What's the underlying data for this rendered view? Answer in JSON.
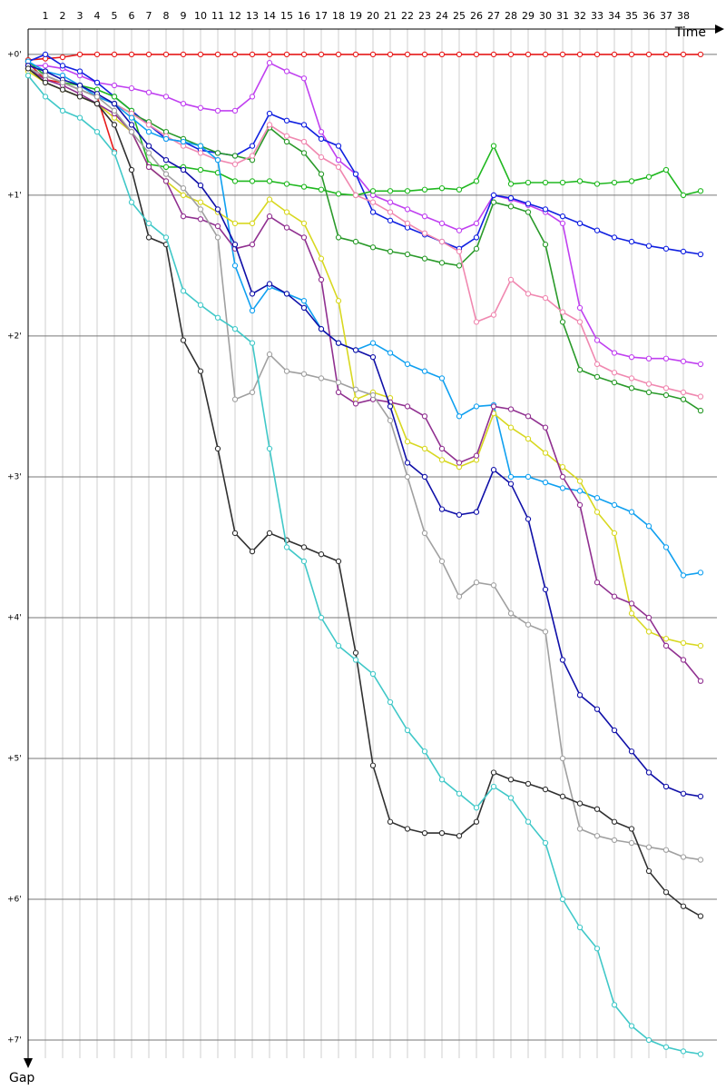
{
  "chart_data": {
    "type": "line",
    "x_label": "Time",
    "y_label": "Gap",
    "x": [
      0,
      1,
      2,
      3,
      4,
      5,
      6,
      7,
      8,
      9,
      10,
      11,
      12,
      13,
      14,
      15,
      16,
      17,
      18,
      19,
      20,
      21,
      22,
      23,
      24,
      25,
      26,
      27,
      28,
      29,
      30,
      31,
      32,
      33,
      34,
      35,
      36,
      37,
      38,
      39
    ],
    "xlim": [
      0,
      40
    ],
    "xticks": [
      1,
      2,
      3,
      4,
      5,
      6,
      7,
      8,
      9,
      10,
      11,
      12,
      13,
      14,
      15,
      16,
      17,
      18,
      19,
      20,
      21,
      22,
      23,
      24,
      25,
      26,
      27,
      28,
      29,
      30,
      31,
      32,
      33,
      34,
      35,
      36,
      37,
      38
    ],
    "ylim": [
      -0.18,
      7.2
    ],
    "y_inverted": true,
    "yticks": [
      {
        "value": 0,
        "label": "+0'"
      },
      {
        "value": 1,
        "label": "+1'"
      },
      {
        "value": 2,
        "label": "+2'"
      },
      {
        "value": 3,
        "label": "+3'"
      },
      {
        "value": 4,
        "label": "+4'"
      },
      {
        "value": 5,
        "label": "+5'"
      },
      {
        "value": 6,
        "label": "+6'"
      },
      {
        "value": 7,
        "label": "+7'"
      }
    ],
    "grid": true,
    "series": [
      {
        "color": "#e81c1c",
        "values": [
          0.04,
          0.03,
          0.02,
          0,
          0,
          0,
          0,
          0,
          0,
          0,
          0,
          0,
          0,
          0,
          0,
          0,
          0,
          0,
          0,
          0,
          0,
          0,
          0,
          0,
          0,
          0,
          0,
          0,
          0,
          0,
          0,
          0,
          0,
          0,
          0,
          0,
          0,
          0,
          0,
          0
        ]
      },
      {
        "color": "#e81c1c",
        "values": [
          0.06,
          0.18,
          0.2,
          0.25,
          0.3,
          0.69,
          null,
          null,
          null,
          null,
          null,
          null,
          null,
          null,
          null,
          null,
          null,
          null,
          null,
          null,
          null,
          null,
          null,
          null,
          null,
          null,
          null,
          null,
          null,
          null,
          null,
          null,
          null,
          null,
          null,
          null,
          null,
          null,
          null,
          null
        ]
      },
      {
        "color": "#c040f0",
        "values": [
          0.08,
          0.08,
          0.1,
          0.15,
          0.2,
          0.22,
          0.24,
          0.27,
          0.3,
          0.35,
          0.38,
          0.4,
          0.4,
          0.3,
          0.06,
          0.12,
          0.17,
          0.55,
          0.75,
          0.85,
          1.0,
          1.05,
          1.1,
          1.15,
          1.2,
          1.25,
          1.2,
          1.0,
          1.03,
          1.07,
          1.12,
          1.2,
          1.8,
          2.03,
          2.12,
          2.15,
          2.16,
          2.16,
          2.18,
          2.2
        ]
      },
      {
        "color": "#1020e0",
        "values": [
          0.05,
          0,
          0.08,
          0.12,
          0.2,
          0.3,
          0.4,
          0.5,
          0.6,
          0.62,
          0.68,
          0.7,
          0.72,
          0.65,
          0.42,
          0.47,
          0.5,
          0.6,
          0.65,
          0.85,
          1.12,
          1.18,
          1.23,
          1.28,
          1.33,
          1.38,
          1.3,
          1.0,
          1.02,
          1.06,
          1.1,
          1.15,
          1.2,
          1.25,
          1.3,
          1.33,
          1.36,
          1.38,
          1.4,
          1.42
        ]
      },
      {
        "color": "#20b820",
        "values": [
          0.05,
          0.15,
          0.2,
          0.22,
          0.25,
          0.3,
          0.4,
          0.78,
          0.8,
          0.8,
          0.82,
          0.84,
          0.9,
          0.9,
          0.9,
          0.92,
          0.94,
          0.96,
          0.99,
          1.0,
          0.97,
          0.97,
          0.97,
          0.96,
          0.95,
          0.96,
          0.9,
          0.65,
          0.92,
          0.91,
          0.91,
          0.91,
          0.9,
          0.92,
          0.91,
          0.9,
          0.87,
          0.82,
          1.0,
          0.97
        ]
      },
      {
        "color": "#2a9a2a",
        "values": [
          0.1,
          0.15,
          0.2,
          0.25,
          0.3,
          0.35,
          0.42,
          0.48,
          0.55,
          0.6,
          0.65,
          0.7,
          0.72,
          0.75,
          0.52,
          0.62,
          0.7,
          0.85,
          1.3,
          1.33,
          1.37,
          1.4,
          1.42,
          1.45,
          1.48,
          1.5,
          1.38,
          1.05,
          1.08,
          1.12,
          1.35,
          1.9,
          2.24,
          2.29,
          2.33,
          2.37,
          2.4,
          2.42,
          2.45,
          2.53
        ]
      },
      {
        "color": "#f088b0",
        "values": [
          0.1,
          0.15,
          0.2,
          0.25,
          0.3,
          0.35,
          0.42,
          0.5,
          0.58,
          0.65,
          0.7,
          0.75,
          0.78,
          0.72,
          0.5,
          0.58,
          0.62,
          0.73,
          0.8,
          1.0,
          1.05,
          1.12,
          1.2,
          1.27,
          1.33,
          1.4,
          1.9,
          1.85,
          1.6,
          1.7,
          1.73,
          1.83,
          1.9,
          2.2,
          2.26,
          2.3,
          2.34,
          2.37,
          2.4,
          2.43
        ]
      },
      {
        "color": "#10a0f0",
        "values": [
          0.05,
          0.12,
          0.15,
          0.22,
          0.3,
          0.35,
          0.45,
          0.55,
          0.6,
          0.62,
          0.65,
          0.75,
          1.5,
          1.82,
          1.65,
          1.7,
          1.75,
          1.95,
          2.05,
          2.1,
          2.05,
          2.12,
          2.2,
          2.25,
          2.3,
          2.57,
          2.5,
          2.49,
          3.0,
          3.0,
          3.04,
          3.08,
          3.1,
          3.15,
          3.2,
          3.25,
          3.35,
          3.5,
          3.7,
          3.68
        ]
      },
      {
        "color": "#d8d820",
        "values": [
          0.12,
          0.2,
          0.25,
          0.3,
          0.35,
          0.45,
          0.55,
          0.8,
          0.9,
          1.0,
          1.05,
          1.12,
          1.2,
          1.2,
          1.03,
          1.12,
          1.2,
          1.45,
          1.75,
          2.45,
          2.4,
          2.44,
          2.75,
          2.8,
          2.88,
          2.93,
          2.88,
          2.55,
          2.65,
          2.73,
          2.83,
          2.93,
          3.03,
          3.25,
          3.4,
          3.97,
          4.1,
          4.15,
          4.18,
          4.2
        ]
      },
      {
        "color": "#903090",
        "values": [
          0.1,
          0.18,
          0.22,
          0.28,
          0.35,
          0.42,
          0.55,
          0.8,
          0.9,
          1.15,
          1.17,
          1.22,
          1.38,
          1.35,
          1.15,
          1.23,
          1.3,
          1.6,
          2.4,
          2.48,
          2.45,
          2.47,
          2.5,
          2.57,
          2.8,
          2.9,
          2.85,
          2.5,
          2.52,
          2.57,
          2.65,
          3.0,
          3.2,
          3.75,
          3.85,
          3.9,
          4.0,
          4.2,
          4.3,
          4.45
        ]
      },
      {
        "color": "#1010a8",
        "values": [
          0.08,
          0.12,
          0.18,
          0.22,
          0.28,
          0.35,
          0.5,
          0.65,
          0.75,
          0.82,
          0.93,
          1.1,
          1.35,
          1.7,
          1.63,
          1.7,
          1.8,
          1.95,
          2.05,
          2.1,
          2.15,
          2.5,
          2.9,
          3.0,
          3.23,
          3.27,
          3.25,
          2.95,
          3.05,
          3.3,
          3.8,
          4.3,
          4.55,
          4.65,
          4.8,
          4.95,
          5.1,
          5.2,
          5.25,
          5.27
        ]
      },
      {
        "color": "#a0a0a0",
        "values": [
          0.1,
          0.15,
          0.2,
          0.25,
          0.3,
          0.4,
          0.55,
          0.7,
          0.85,
          0.95,
          1.1,
          1.3,
          2.45,
          2.4,
          2.13,
          2.25,
          2.27,
          2.3,
          2.33,
          2.38,
          2.42,
          2.6,
          3.0,
          3.4,
          3.6,
          3.85,
          3.75,
          3.77,
          3.97,
          4.05,
          4.1,
          5.0,
          5.5,
          5.55,
          5.58,
          5.6,
          5.63,
          5.65,
          5.7,
          5.72
        ]
      },
      {
        "color": "#303030",
        "values": [
          0.1,
          0.2,
          0.25,
          0.3,
          0.35,
          0.5,
          0.82,
          1.3,
          1.35,
          2.03,
          2.25,
          2.8,
          3.4,
          3.53,
          3.4,
          3.45,
          3.5,
          3.55,
          3.6,
          4.25,
          5.05,
          5.45,
          5.5,
          5.53,
          5.53,
          5.55,
          5.45,
          5.1,
          5.15,
          5.18,
          5.22,
          5.27,
          5.32,
          5.36,
          5.45,
          5.5,
          5.8,
          5.95,
          6.05,
          6.12
        ]
      },
      {
        "color": "#40c8c8",
        "values": [
          0.15,
          0.3,
          0.4,
          0.45,
          0.55,
          0.7,
          1.05,
          1.2,
          1.3,
          1.68,
          1.78,
          1.87,
          1.95,
          2.05,
          2.8,
          3.5,
          3.6,
          4.0,
          4.2,
          4.3,
          4.4,
          4.6,
          4.8,
          4.95,
          5.15,
          5.25,
          5.35,
          5.2,
          5.28,
          5.45,
          5.6,
          6.0,
          6.2,
          6.35,
          6.75,
          6.9,
          7.0,
          7.05,
          7.08,
          7.1
        ]
      }
    ]
  }
}
